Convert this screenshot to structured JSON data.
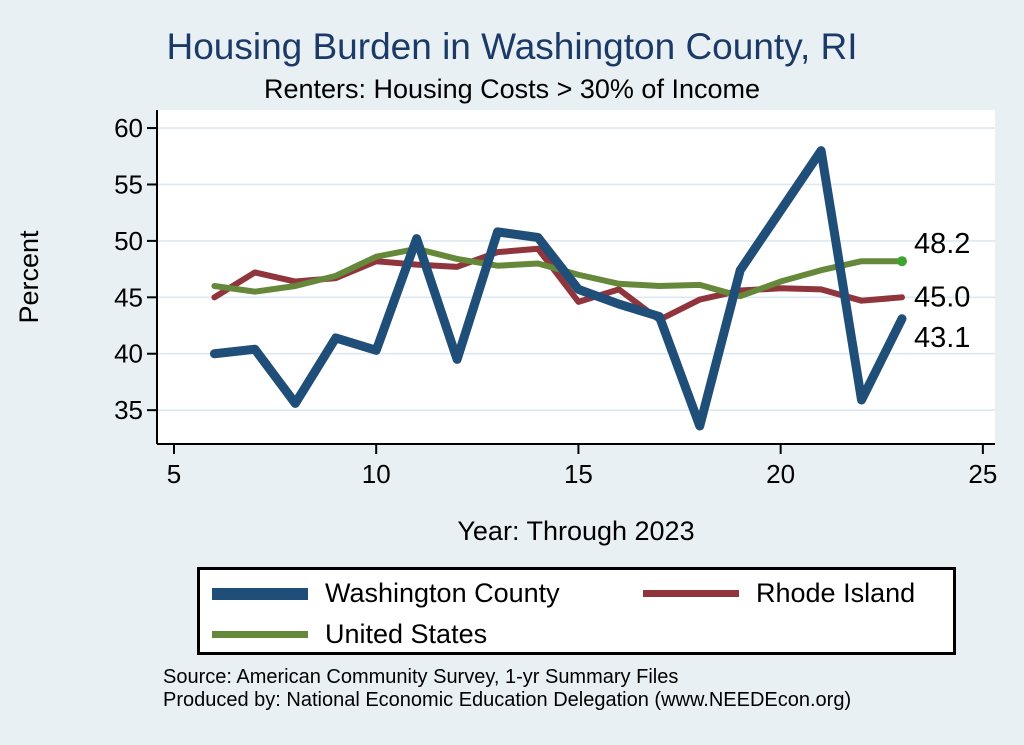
{
  "header": {
    "title": "Housing Burden in Washington County, RI",
    "subtitle": "Renters: Housing Costs > 30% of Income"
  },
  "chart_data": {
    "type": "line",
    "x": [
      6,
      7,
      8,
      9,
      10,
      11,
      12,
      13,
      14,
      15,
      16,
      17,
      18,
      19,
      20,
      21,
      22,
      23
    ],
    "series": [
      {
        "name": "Washington County",
        "color": "#1f4e79",
        "stroke_width": 9,
        "values": [
          40.0,
          40.4,
          35.6,
          41.4,
          40.3,
          50.2,
          39.5,
          50.8,
          50.3,
          45.7,
          44.4,
          43.3,
          33.6,
          47.4,
          52.7,
          58.0,
          35.9,
          43.1
        ],
        "end_label": "43.1",
        "end_marker": false
      },
      {
        "name": "Rhode Island",
        "color": "#90353b",
        "stroke_width": 6,
        "values": [
          45.0,
          47.2,
          46.4,
          46.7,
          48.2,
          47.9,
          47.7,
          49.0,
          49.3,
          44.6,
          45.7,
          43.0,
          44.8,
          45.6,
          45.8,
          45.7,
          44.7,
          45.0
        ],
        "end_label": "45.0",
        "end_marker": false
      },
      {
        "name": "United States",
        "color": "#66883a",
        "stroke_width": 6,
        "values": [
          46.0,
          45.5,
          46.0,
          46.9,
          48.6,
          49.3,
          48.4,
          47.8,
          48.0,
          47.0,
          46.2,
          46.0,
          46.1,
          45.1,
          46.4,
          47.4,
          48.2,
          48.2
        ],
        "end_label": "48.2",
        "end_marker": true
      }
    ],
    "xlabel": "Year: Through 2023",
    "ylabel": "Percent",
    "x_ticks": [
      5,
      10,
      15,
      20,
      25
    ],
    "y_ticks": [
      35,
      40,
      45,
      50,
      55,
      60
    ],
    "xlim": [
      4.58,
      25.3
    ],
    "ylim": [
      32.0,
      61.6
    ],
    "grid": true,
    "legend_position": "bottom"
  },
  "legend": {
    "items": [
      {
        "label": "Washington County"
      },
      {
        "label": "Rhode Island"
      },
      {
        "label": "United States"
      }
    ]
  },
  "footer": {
    "source_line1": "Source: American Community Survey, 1-yr Summary Files",
    "source_line2": "Produced by: National Economic Education Delegation (www.NEEDEcon.org)"
  },
  "colors": {
    "page_background": "#e9f0f3",
    "plot_background": "#ffffff",
    "gridline": "#dde9f1",
    "axis": "#000000",
    "title": "#1b3a68",
    "text": "#000000",
    "end_marker": "#3fa32f"
  }
}
